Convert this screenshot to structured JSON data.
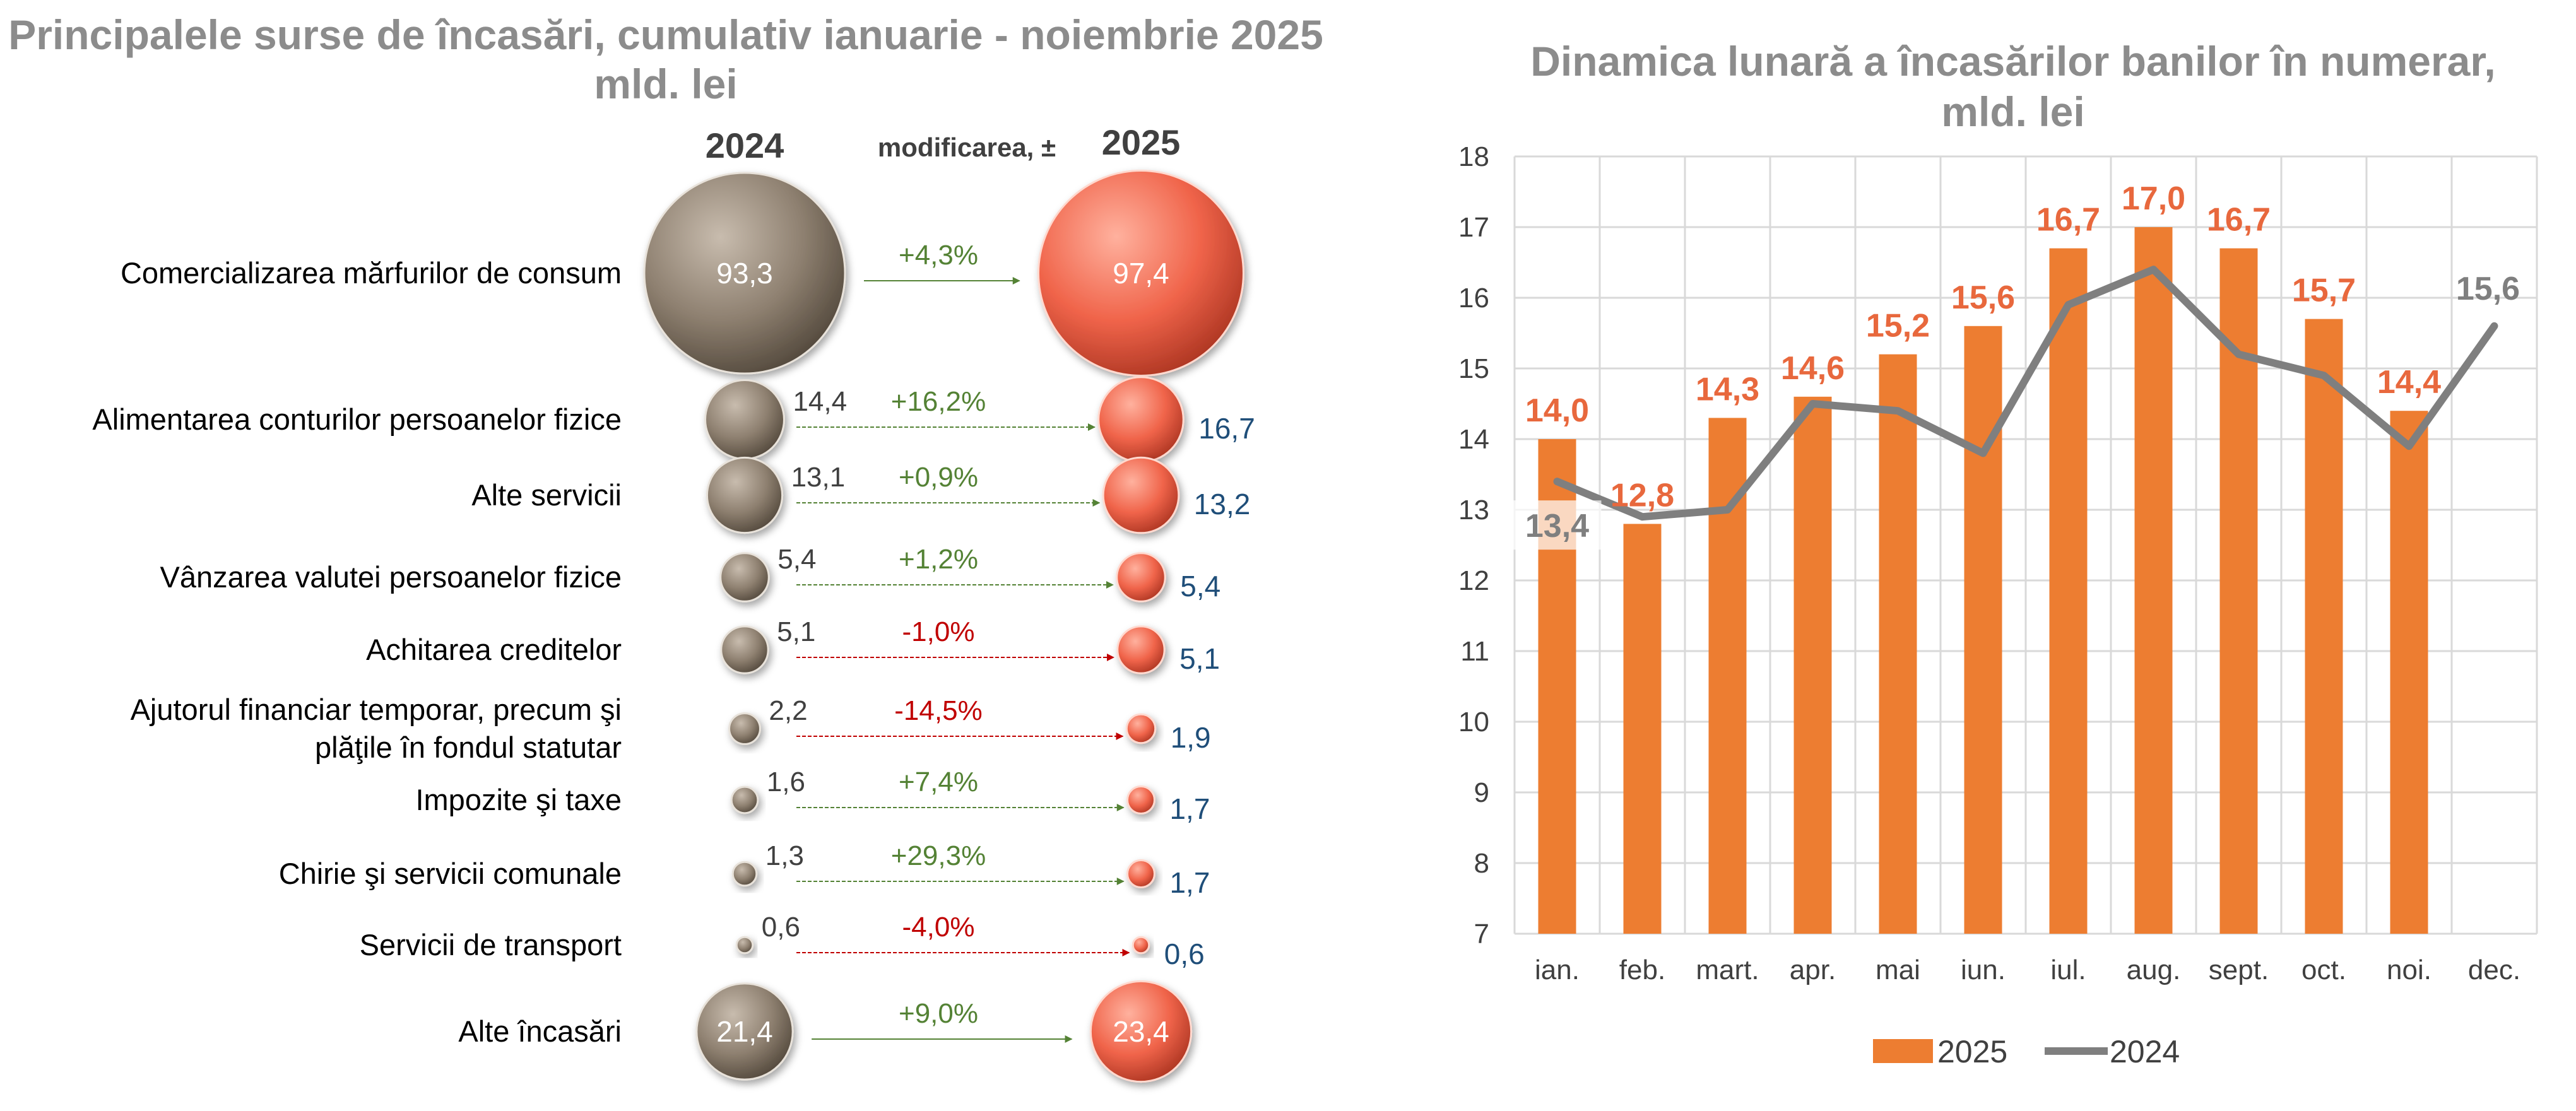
{
  "left_panel": {
    "title_line1": "Principalele surse de încasări, cumulativ ianuarie - noiembrie 2025",
    "title_line2": "mld. lei",
    "col_2024": "2024",
    "col_change": "modificarea, ±",
    "col_2025": "2025",
    "colors": {
      "bubble_2024": "#8e8070",
      "bubble_2025": "#f0644a",
      "positive": "#548235",
      "negative": "#c00000",
      "value_2025": "#1f4e79"
    }
  },
  "right_panel": {
    "title_line1": "Dinamica lunară a încasărilor banilor în numerar,",
    "title_line2": "mld. lei",
    "colors": {
      "bar_2025": "#ed7d31",
      "line_2024": "#7f7f7f",
      "label_2025": "#e8683d"
    }
  },
  "chart_data": [
    {
      "type": "bubble",
      "title": "Principalele surse de încasări, cumulativ ianuarie - noiembrie 2025",
      "subtitle": "mld. lei",
      "categories": [
        "Comercializarea mărfurilor de consum",
        "Alimentarea conturilor persoanelor fizice",
        "Alte servicii",
        "Vânzarea valutei persoanelor fizice",
        "Achitarea creditelor",
        "Ajutorul financiar temporar, precum şi plăţile în fondul statutar",
        "Impozite şi taxe",
        "Chirie şi servicii comunale",
        "Servicii de transport",
        "Alte încasări"
      ],
      "label_lines": [
        [
          "Comercializarea mărfurilor de consum"
        ],
        [
          "Alimentarea conturilor persoanelor fizice"
        ],
        [
          "Alte servicii"
        ],
        [
          "Vânzarea valutei persoanelor fizice"
        ],
        [
          "Achitarea creditelor"
        ],
        [
          "Ajutorul financiar temporar, precum şi",
          "plăţile în fondul statutar"
        ],
        [
          "Impozite şi taxe"
        ],
        [
          "Chirie şi servicii comunale"
        ],
        [
          "Servicii de transport"
        ],
        [
          "Alte încasări"
        ]
      ],
      "series": [
        {
          "name": "2024",
          "values": [
            93.3,
            14.4,
            13.1,
            5.4,
            5.1,
            2.2,
            1.6,
            1.3,
            0.6,
            21.4
          ],
          "labels": [
            "93,3",
            "14,4",
            "13,1",
            "5,4",
            "5,1",
            "2,2",
            "1,6",
            "1,3",
            "0,6",
            "21,4"
          ]
        },
        {
          "name": "2025",
          "values": [
            97.4,
            16.7,
            13.2,
            5.4,
            5.1,
            1.9,
            1.7,
            1.7,
            0.6,
            23.4
          ],
          "labels": [
            "97,4",
            "16,7",
            "13,2",
            "5,4",
            "5,1",
            "1,9",
            "1,7",
            "1,7",
            "0,6",
            "23,4"
          ]
        }
      ],
      "change": {
        "name": "modificarea, ±",
        "values": [
          4.3,
          16.2,
          0.9,
          1.2,
          -1.0,
          -14.5,
          7.4,
          29.3,
          -4.0,
          9.0
        ],
        "labels": [
          "+4,3%",
          "+16,2%",
          "+0,9%",
          "+1,2%",
          "-1,0%",
          "-14,5%",
          "+7,4%",
          "+29,3%",
          "-4,0%",
          "+9,0%"
        ]
      }
    },
    {
      "type": "bar",
      "title": "Dinamica lunară a încasărilor banilor în numerar,",
      "subtitle": "mld. lei",
      "categories": [
        "ian.",
        "feb.",
        "mart.",
        "apr.",
        "mai",
        "iun.",
        "iul.",
        "aug.",
        "sept.",
        "oct.",
        "noi.",
        "dec."
      ],
      "ylim": [
        7,
        18
      ],
      "yticks": [
        7,
        8,
        9,
        10,
        11,
        12,
        13,
        14,
        15,
        16,
        17,
        18
      ],
      "grid": true,
      "legend": "bottom",
      "series": [
        {
          "name": "2025",
          "type": "bar",
          "values": [
            14.0,
            12.8,
            14.3,
            14.6,
            15.2,
            15.6,
            16.7,
            17.0,
            16.7,
            15.7,
            14.4,
            null
          ],
          "labels": [
            "14,0",
            "12,8",
            "14,3",
            "14,6",
            "15,2",
            "15,6",
            "16,7",
            "17,0",
            "16,7",
            "15,7",
            "14,4",
            ""
          ]
        },
        {
          "name": "2024",
          "type": "line",
          "values": [
            13.4,
            12.9,
            13.0,
            14.5,
            14.4,
            13.8,
            15.9,
            16.4,
            15.2,
            14.9,
            13.9,
            15.6
          ],
          "labeled_points": {
            "ian.": "13,4",
            "dec.": "15,6"
          }
        }
      ]
    }
  ]
}
